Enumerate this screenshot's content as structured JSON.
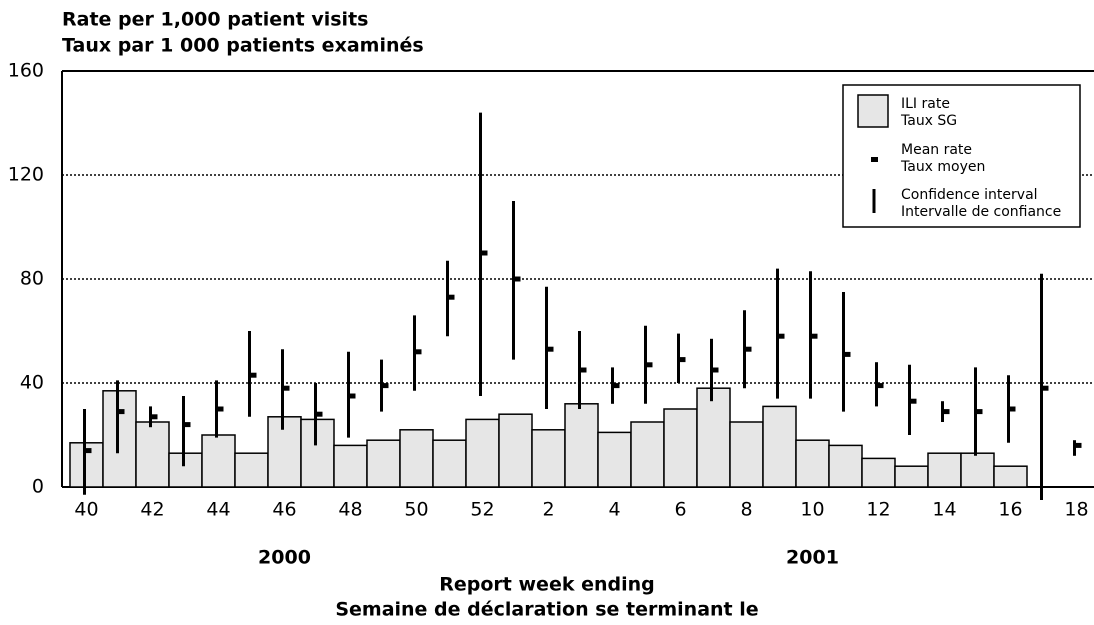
{
  "chart_data": {
    "type": "bar_errorbar",
    "title": "Rate per 1,000 patient visits",
    "title_fr": "Taux par 1 000 patients examinés",
    "xlabel": "Report week ending",
    "xlabel_fr": "Semaine de déclaration se terminant le",
    "annotations": [
      "2000",
      "2001"
    ],
    "categories": [
      "40",
      null,
      "42",
      null,
      "44",
      null,
      "46",
      null,
      "48",
      null,
      "50",
      null,
      "52",
      null,
      "2",
      null,
      "4",
      null,
      "6",
      null,
      "8",
      null,
      "10",
      null,
      "12",
      null,
      "14",
      null,
      "16",
      null,
      "18"
    ],
    "ylim": [
      0,
      160
    ],
    "yticks": [
      0,
      40,
      80,
      120,
      160
    ],
    "grid": true,
    "series": [
      {
        "name": "ILI rate",
        "name_fr": "Taux SG",
        "color": "#e6e6e6",
        "values": [
          17,
          37,
          25,
          13,
          20,
          13,
          27,
          26,
          16,
          18,
          22,
          18,
          26,
          28,
          22,
          32,
          21,
          25,
          30,
          38,
          25,
          31,
          18,
          16,
          11,
          8,
          13,
          13,
          8,
          null,
          null
        ]
      },
      {
        "name": "Mean rate",
        "name_fr": "Taux moyen",
        "color": "#000000",
        "values": [
          14,
          29,
          27,
          24,
          30,
          43,
          38,
          28,
          35,
          39,
          52,
          73,
          90,
          80,
          53,
          45,
          39,
          47,
          49,
          45,
          53,
          58,
          58,
          51,
          39,
          33,
          29,
          29,
          30,
          38,
          16
        ]
      },
      {
        "name": "Confidence interval",
        "name_fr": "Intervalle de confiance",
        "color": "#000000",
        "low": [
          -3,
          13,
          23,
          8,
          19,
          27,
          22,
          16,
          19,
          29,
          37,
          58,
          35,
          49,
          30,
          30,
          32,
          32,
          40,
          33,
          38,
          34,
          34,
          29,
          31,
          20,
          25,
          12,
          17,
          -5,
          12
        ],
        "high": [
          30,
          41,
          31,
          35,
          41,
          60,
          53,
          40,
          52,
          49,
          66,
          87,
          144,
          110,
          77,
          60,
          46,
          62,
          59,
          57,
          68,
          84,
          83,
          75,
          48,
          47,
          33,
          46,
          43,
          82,
          18
        ]
      }
    ]
  }
}
